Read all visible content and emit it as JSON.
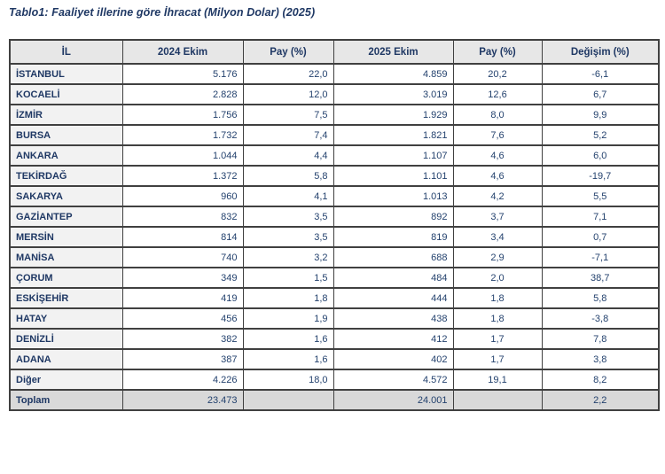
{
  "title": "Tablo1: Faaliyet illerine göre İhracat (Milyon Dolar) (2025)",
  "colors": {
    "text_navy": "#1f3864",
    "header_bg": "#e7e7e7",
    "row_label_bg": "#f2f2f2",
    "total_row_bg": "#d9d9d9",
    "border": "#404040"
  },
  "table": {
    "columns": [
      "İL",
      "2024 Ekim",
      "Pay (%)",
      "2025 Ekim",
      "Pay (%)",
      "Değişim (%)"
    ],
    "rows": [
      {
        "il": "İSTANBUL",
        "v2024": "5.176",
        "pay2024": "22,0",
        "v2025": "4.859",
        "pay2025": "20,2",
        "degisim": "-6,1"
      },
      {
        "il": "KOCAELİ",
        "v2024": "2.828",
        "pay2024": "12,0",
        "v2025": "3.019",
        "pay2025": "12,6",
        "degisim": "6,7"
      },
      {
        "il": "İZMİR",
        "v2024": "1.756",
        "pay2024": "7,5",
        "v2025": "1.929",
        "pay2025": "8,0",
        "degisim": "9,9"
      },
      {
        "il": "BURSA",
        "v2024": "1.732",
        "pay2024": "7,4",
        "v2025": "1.821",
        "pay2025": "7,6",
        "degisim": "5,2"
      },
      {
        "il": "ANKARA",
        "v2024": "1.044",
        "pay2024": "4,4",
        "v2025": "1.107",
        "pay2025": "4,6",
        "degisim": "6,0"
      },
      {
        "il": "TEKİRDAĞ",
        "v2024": "1.372",
        "pay2024": "5,8",
        "v2025": "1.101",
        "pay2025": "4,6",
        "degisim": "-19,7"
      },
      {
        "il": "SAKARYA",
        "v2024": "960",
        "pay2024": "4,1",
        "v2025": "1.013",
        "pay2025": "4,2",
        "degisim": "5,5"
      },
      {
        "il": "GAZİANTEP",
        "v2024": "832",
        "pay2024": "3,5",
        "v2025": "892",
        "pay2025": "3,7",
        "degisim": "7,1"
      },
      {
        "il": "MERSİN",
        "v2024": "814",
        "pay2024": "3,5",
        "v2025": "819",
        "pay2025": "3,4",
        "degisim": "0,7"
      },
      {
        "il": "MANİSA",
        "v2024": "740",
        "pay2024": "3,2",
        "v2025": "688",
        "pay2025": "2,9",
        "degisim": "-7,1"
      },
      {
        "il": "ÇORUM",
        "v2024": "349",
        "pay2024": "1,5",
        "v2025": "484",
        "pay2025": "2,0",
        "degisim": "38,7"
      },
      {
        "il": "ESKİŞEHİR",
        "v2024": "419",
        "pay2024": "1,8",
        "v2025": "444",
        "pay2025": "1,8",
        "degisim": "5,8"
      },
      {
        "il": "HATAY",
        "v2024": "456",
        "pay2024": "1,9",
        "v2025": "438",
        "pay2025": "1,8",
        "degisim": "-3,8"
      },
      {
        "il": "DENİZLİ",
        "v2024": "382",
        "pay2024": "1,6",
        "v2025": "412",
        "pay2025": "1,7",
        "degisim": "7,8"
      },
      {
        "il": "ADANA",
        "v2024": "387",
        "pay2024": "1,6",
        "v2025": "402",
        "pay2025": "1,7",
        "degisim": "3,8"
      },
      {
        "il": "Diğer",
        "v2024": "4.226",
        "pay2024": "18,0",
        "v2025": "4.572",
        "pay2025": "19,1",
        "degisim": "8,2"
      }
    ],
    "total": {
      "il": "Toplam",
      "v2024": "23.473",
      "pay2024": "",
      "v2025": "24.001",
      "pay2025": "",
      "degisim": "2,2"
    }
  }
}
